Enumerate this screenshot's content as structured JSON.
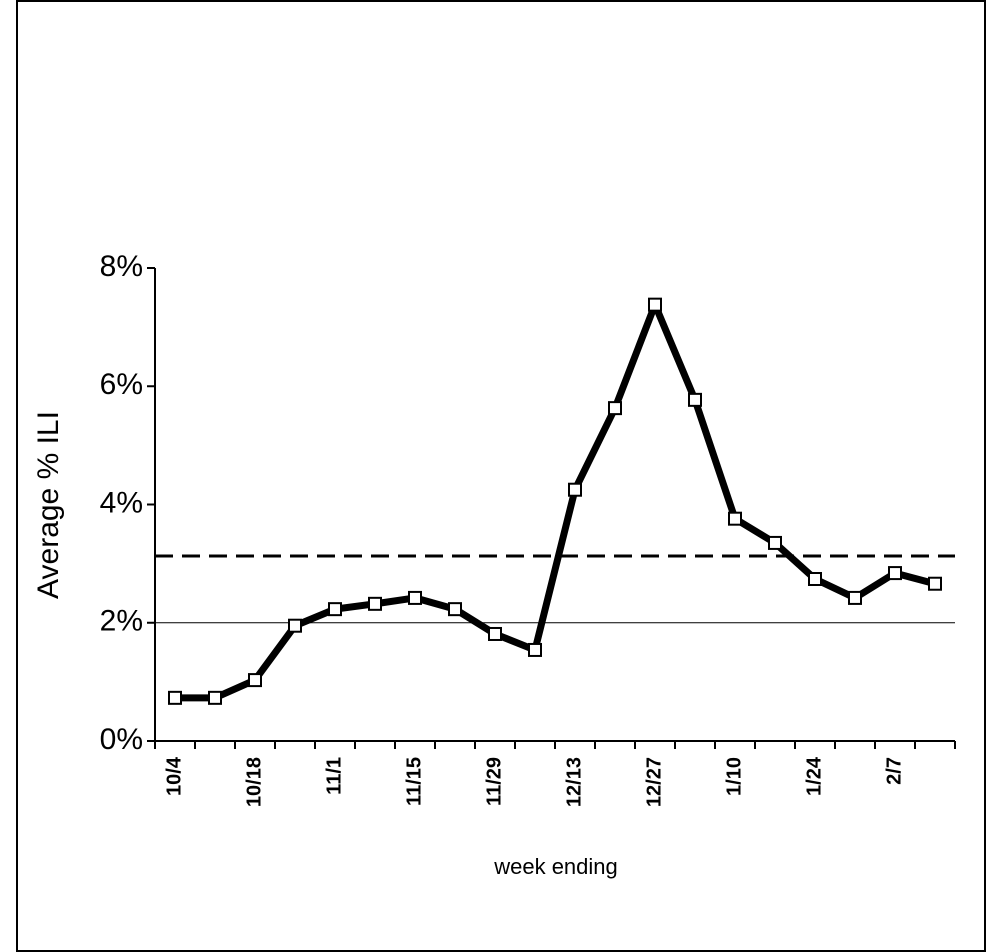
{
  "chart_data": {
    "type": "line",
    "y_label": "Average % ILI",
    "x_label": "week ending",
    "categories": [
      "10/4",
      null,
      "10/18",
      null,
      "11/1",
      null,
      "11/15",
      null,
      "11/29",
      null,
      "12/13",
      null,
      "12/27",
      null,
      "1/10",
      null,
      "1/24",
      null,
      "2/7",
      null
    ],
    "series": [
      {
        "name": "Average % ILI",
        "color": "#000000",
        "values": [
          0.73,
          0.73,
          1.03,
          1.95,
          2.23,
          2.32,
          2.42,
          2.23,
          1.81,
          1.54,
          4.25,
          5.63,
          7.38,
          5.77,
          3.76,
          3.35,
          2.74,
          2.42,
          2.84,
          2.66
        ]
      }
    ],
    "reference_lines": [
      {
        "value": 3.13,
        "style": "dashed"
      },
      {
        "value": 2.0,
        "style": "solid"
      }
    ],
    "ylim": [
      0,
      8
    ],
    "yticks": [
      {
        "value": 0,
        "label": "0%"
      },
      {
        "value": 2,
        "label": "2%"
      },
      {
        "value": 4,
        "label": "4%"
      },
      {
        "value": 6,
        "label": "6%"
      },
      {
        "value": 8,
        "label": "8%"
      }
    ],
    "grid": false
  }
}
